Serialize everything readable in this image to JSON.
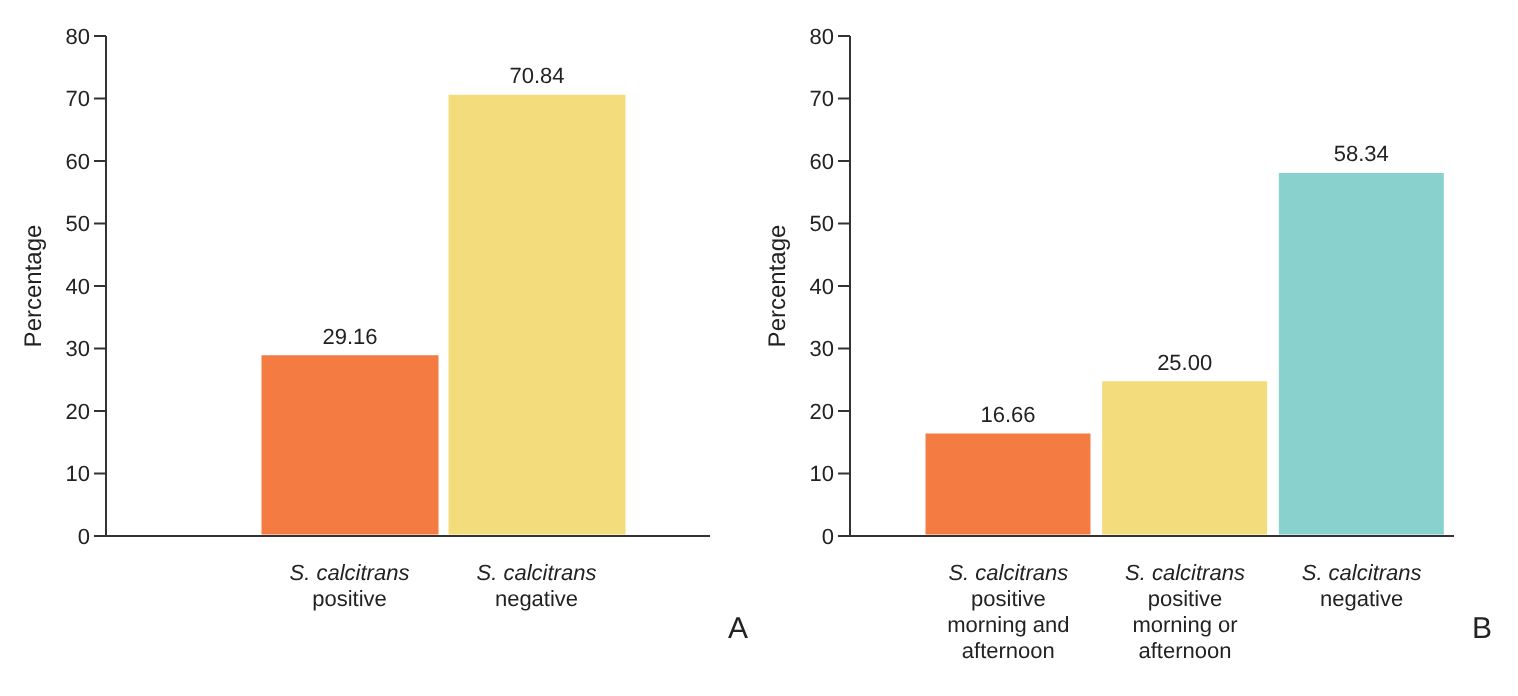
{
  "chart_data": [
    {
      "type": "bar",
      "ylabel": "Percentage",
      "categories": [
        "S. calcitrans positive",
        "S. calcitrans negative"
      ],
      "values": [
        29.16,
        70.84
      ],
      "colors": [
        "#f47b42",
        "#f2dc7c"
      ],
      "value_labels": [
        "29.16",
        "70.84"
      ],
      "ylim": [
        0,
        80
      ],
      "yticks": [
        0,
        10,
        20,
        30,
        40,
        50,
        60,
        70,
        80
      ],
      "grid": false,
      "legend": false,
      "annotations": [
        "A"
      ]
    },
    {
      "type": "bar",
      "ylabel": "Percentage",
      "categories": [
        "S. calcitrans positive morning and afternoon",
        "S. calcitrans positive morning or afternoon",
        "S. calcitrans negative"
      ],
      "values": [
        16.66,
        25.0,
        58.34
      ],
      "colors": [
        "#f47b42",
        "#f2dc7c",
        "#88d1cc"
      ],
      "value_labels": [
        "16.66",
        "25.00",
        "58.34"
      ],
      "ylim": [
        0,
        80
      ],
      "yticks": [
        0,
        10,
        20,
        30,
        40,
        50,
        60,
        70,
        80
      ],
      "grid": false,
      "legend": false,
      "annotations": [
        "B"
      ]
    }
  ]
}
